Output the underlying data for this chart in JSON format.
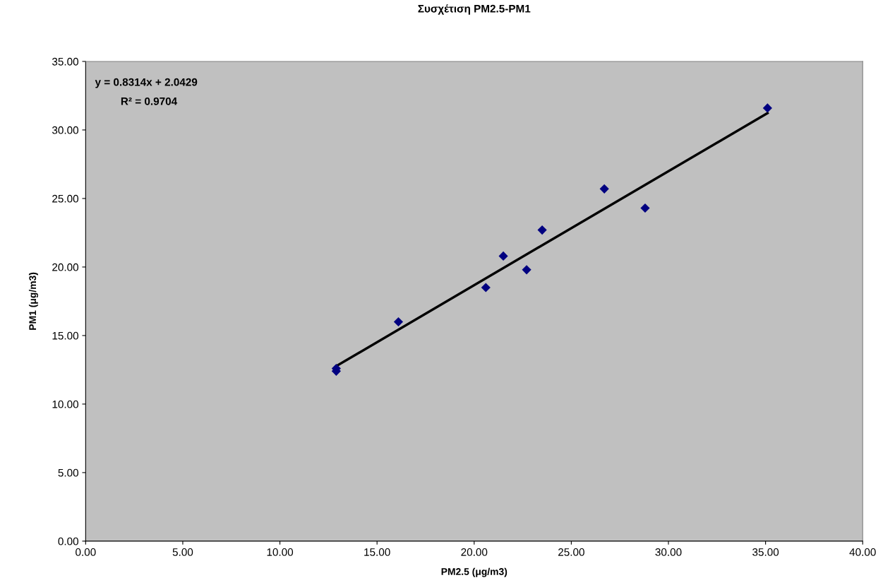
{
  "chart_data": {
    "type": "scatter",
    "title": "Συσχέτιση PM2.5-PM1",
    "xlabel": "PM2.5 (μg/m3)",
    "ylabel": "PM1 (μg/m3)",
    "series": [
      {
        "color": "#000080",
        "marker": "diamond",
        "x": [
          12.9,
          12.9,
          16.1,
          20.6,
          21.5,
          22.7,
          23.5,
          26.7,
          28.8,
          35.1
        ],
        "values": [
          12.6,
          12.4,
          16.0,
          18.5,
          20.8,
          19.8,
          22.7,
          25.7,
          24.3,
          31.6
        ]
      },
      {
        "type": "line",
        "color": "#000000",
        "marker": "none",
        "line_style": "solid",
        "x": [
          12.9,
          35.1
        ],
        "values": [
          12.77,
          31.23
        ]
      }
    ],
    "annotations": [
      "y = 0.8314x + 2.0429",
      "R² = 0.9704"
    ],
    "xlim": [
      0,
      40
    ],
    "ylim": [
      0,
      35
    ],
    "xticks": [
      {
        "value": 0,
        "label": "0.00"
      },
      {
        "value": 5,
        "label": "5.00"
      },
      {
        "value": 10,
        "label": "10.00"
      },
      {
        "value": 15,
        "label": "15.00"
      },
      {
        "value": 20,
        "label": "20.00"
      },
      {
        "value": 25,
        "label": "25.00"
      },
      {
        "value": 30,
        "label": "30.00"
      },
      {
        "value": 35,
        "label": "35.00"
      },
      {
        "value": 40,
        "label": "40.00"
      }
    ],
    "yticks": [
      {
        "value": 0,
        "label": "0.00"
      },
      {
        "value": 5,
        "label": "5.00"
      },
      {
        "value": 10,
        "label": "10.00"
      },
      {
        "value": 15,
        "label": "15.00"
      },
      {
        "value": 20,
        "label": "20.00"
      },
      {
        "value": 25,
        "label": "25.00"
      },
      {
        "value": 30,
        "label": "30.00"
      },
      {
        "value": 35,
        "label": "35.00"
      }
    ],
    "grid": false,
    "legend": false
  }
}
